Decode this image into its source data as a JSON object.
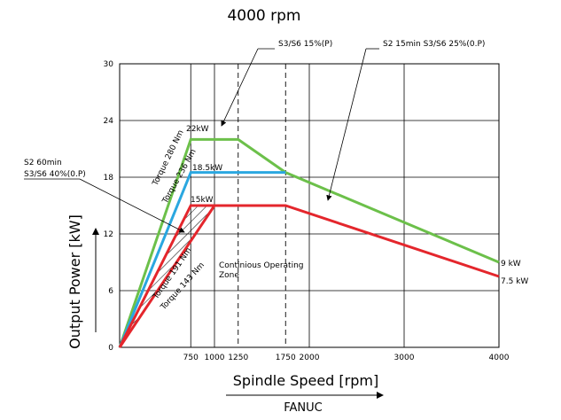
{
  "chart_data": {
    "type": "line",
    "title": "4000 rpm",
    "xlabel": "Spindle Speed [rpm]",
    "ylabel": "Output Power [kW]",
    "xlim": [
      0,
      4000
    ],
    "ylim": [
      0,
      30
    ],
    "x_ticks": [
      750,
      1000,
      1250,
      1750,
      2000,
      3000,
      4000
    ],
    "y_ticks": [
      0,
      6,
      12,
      18,
      24,
      30
    ],
    "vertical_gridlines": [
      750,
      1000,
      2000,
      3000
    ],
    "dashed_gridlines": [
      1250,
      1750
    ],
    "grid": true,
    "series": [
      {
        "color": "#6cc04a",
        "x": [
          0,
          750,
          1250,
          1750,
          4000
        ],
        "y": [
          0,
          22,
          22,
          18.5,
          9
        ]
      },
      {
        "color": "#2aa7e0",
        "x": [
          0,
          750,
          1750
        ],
        "y": [
          0,
          18.5,
          18.5
        ]
      },
      {
        "color": "#e4262c",
        "x": [
          0,
          750,
          1000,
          1750,
          4000
        ],
        "y": [
          0,
          15,
          15,
          15,
          7.5
        ]
      },
      {
        "color": "#e4262c",
        "x": [
          0,
          1000
        ],
        "y": [
          0,
          15
        ]
      }
    ],
    "annotations": {
      "label_22kw": "22kW",
      "label_18_5kw": "18.5kW",
      "label_15kw": "15kW",
      "label_9kw": "9 kW",
      "label_7_5kw": "7.5 kW",
      "torque_280": "Torque 280 Nm",
      "torque_236": "Torque 236 Nm",
      "torque_191": "Torque 191 Nm",
      "torque_143": "Torque 143 Nm",
      "zone_line1": "Continious Operating",
      "zone_line2": "Zone",
      "s3s6_15": "S3/S6 15%(P)",
      "s2_15min": "S2 15min S3/S6 25%(0.P)",
      "s2_60min": "S2 60min",
      "s3s6_40": "S3/S6 40%(0.P)"
    }
  },
  "brand": "FANUC"
}
